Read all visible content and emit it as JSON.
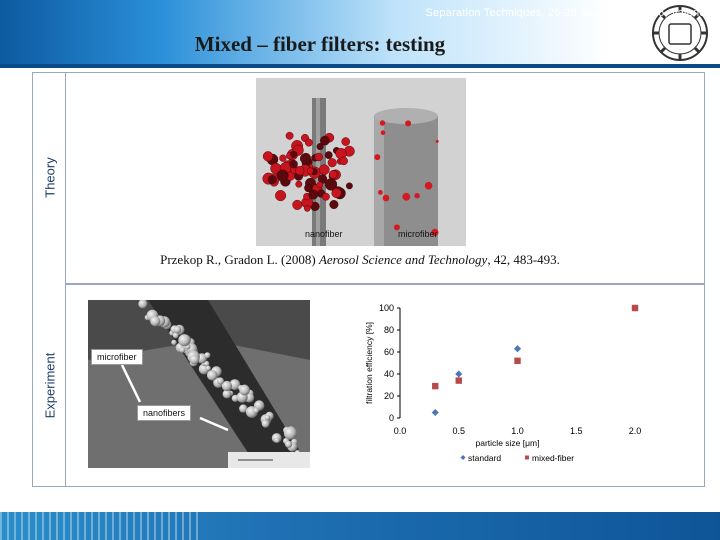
{
  "slide": {
    "title": "Mixed – fiber filters: testing",
    "side_labels": {
      "theory": "Theory",
      "experiment": "Experiment"
    },
    "simulation": {
      "caption_left": "nanofiber",
      "caption_right": "microfiber"
    },
    "citation": {
      "authors": "Przekop R., Gradon L. (2008)",
      "journal": "Aerosol Science and Technology",
      "details": ", 42, 483-493."
    },
    "sem": {
      "label_microfiber": "microfiber",
      "label_nanofibers": "nanofibers"
    },
    "footer": "Separation Techniques, 26-28 September 2016, Valencia",
    "colors": {
      "header_blue": "#0d5aa0",
      "footer_blue": "#1e6fb3",
      "standard": "#4a78b5",
      "mixed": "#b84a4a"
    }
  },
  "chart_data": {
    "type": "scatter",
    "xlabel": "particle size [μm]",
    "ylabel": "filtration efficiency [%]",
    "xlim": [
      0.0,
      2.0
    ],
    "ylim": [
      0,
      100
    ],
    "xticks": [
      "0.0",
      "0.5",
      "1.0",
      "1.5",
      "2.0"
    ],
    "yticks": [
      "0",
      "20",
      "40",
      "60",
      "80",
      "100"
    ],
    "legend_position": "bottom",
    "series": [
      {
        "name": "standard",
        "marker": "diamond",
        "x": [
          0.3,
          0.5,
          1.0,
          2.0
        ],
        "y": [
          5,
          40,
          63,
          100
        ]
      },
      {
        "name": "mixed-fiber",
        "marker": "square",
        "x": [
          0.3,
          0.5,
          1.0,
          2.0
        ],
        "y": [
          29,
          34,
          52,
          100
        ]
      }
    ]
  }
}
